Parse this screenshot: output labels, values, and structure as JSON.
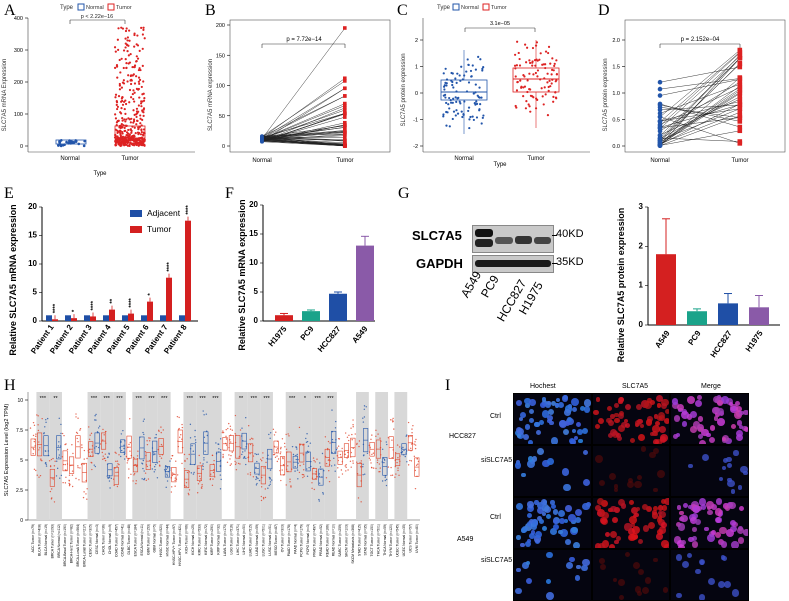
{
  "colors": {
    "normal": "#2255aa",
    "tumor": "#dd2222",
    "blue": "#1f4fa6",
    "red": "#d42020",
    "green": "#1aa38a",
    "purple": "#8a5aa8",
    "gray": "#cccccc"
  },
  "panelA": {
    "label": "A",
    "legend_title": "Type",
    "legend_normal": "Normal",
    "legend_tumor": "Tumor",
    "pvalue": "p < 2.22e−16",
    "ylabel": "SLC7A5 mRNA Expression",
    "xlabel": "Type",
    "chart_data": {
      "type": "box",
      "categories": [
        "Normal",
        "Tumor"
      ],
      "y_ticks": [
        "0",
        "100",
        "200",
        "300",
        "400"
      ],
      "ylim": [
        0,
        400
      ],
      "medians": [
        3,
        22
      ],
      "q1": [
        1,
        10
      ],
      "q3": [
        6,
        40
      ]
    }
  },
  "panelB": {
    "label": "B",
    "pvalue": "p = 7.72e−14",
    "ylabel": "SLC7A5 mRNA expression",
    "chart_data": {
      "type": "paired",
      "categories": [
        "Normal",
        "Tumor"
      ],
      "y_ticks": [
        "0",
        "50",
        "100",
        "150",
        "200"
      ],
      "ylim": [
        0,
        200
      ]
    }
  },
  "panelC": {
    "label": "C",
    "legend_title": "Type",
    "legend_normal": "Normal",
    "legend_tumor": "Tumor",
    "pvalue": "3.1e−05",
    "ylabel": "SLC7A5 protein expression",
    "xlabel": "Type",
    "chart_data": {
      "type": "box",
      "categories": [
        "Normal",
        "Tumor"
      ],
      "y_ticks": [
        "2",
        "1",
        "0",
        "-1",
        "-2"
      ],
      "ylim": [
        -2,
        2
      ]
    }
  },
  "panelD": {
    "label": "D",
    "pvalue": "p = 2.152e−04",
    "ylabel": "SLC7A5 protein expression",
    "chart_data": {
      "type": "paired",
      "categories": [
        "Normal",
        "Tumor"
      ],
      "y_ticks": [
        "2.0",
        "1.5",
        "1.0",
        "0.5",
        "0.0"
      ],
      "ylim": [
        0,
        2
      ]
    }
  },
  "panelE": {
    "label": "E",
    "ylabel": "Relative SLC7A5 mRNA expression",
    "legend_adjacent": "Adjacent",
    "legend_tumor": "Tumor",
    "chart_data": {
      "type": "bar",
      "categories": [
        "Patient 1",
        "Patient 2",
        "Patient 3",
        "Patient 4",
        "Patient 5",
        "Patient 6",
        "Patient 7",
        "Patient 8"
      ],
      "series": [
        {
          "name": "Adjacent",
          "values": [
            1,
            1,
            1,
            1,
            1,
            1,
            1,
            1
          ]
        },
        {
          "name": "Tumor",
          "values": [
            0.3,
            0.5,
            0.8,
            2.0,
            1.3,
            3.4,
            7.6,
            17.6
          ]
        }
      ],
      "sig": [
        "****",
        "*",
        "****",
        "**",
        "****",
        "*",
        "****",
        "****"
      ],
      "y_ticks": [
        "0",
        "5",
        "10",
        "15",
        "20"
      ],
      "ylim": [
        0,
        20
      ]
    }
  },
  "panelF": {
    "label": "F",
    "ylabel": "Relative SLC7A5 mRNA expression",
    "chart_data": {
      "type": "bar",
      "categories": [
        "H1975",
        "PC9",
        "HCC827",
        "A549"
      ],
      "values": [
        1.0,
        1.7,
        4.7,
        13.0
      ],
      "errors": [
        0.3,
        0.2,
        0.3,
        1.6
      ],
      "y_ticks": [
        "0",
        "5",
        "10",
        "15",
        "20"
      ],
      "ylim": [
        0,
        20
      ]
    }
  },
  "panelG": {
    "label": "G",
    "blot_labels": [
      "SLC7A5",
      "GAPDH"
    ],
    "kd_labels": [
      "40KD",
      "35KD"
    ],
    "lanes": [
      "A549",
      "PC9",
      "HCC827",
      "H1975"
    ],
    "ylabel": "Relative SLC7A5 protein expression",
    "chart_data": {
      "type": "bar",
      "categories": [
        "A549",
        "PC9",
        "HCC827",
        "H1975"
      ],
      "values": [
        1.8,
        0.35,
        0.55,
        0.45
      ],
      "errors": [
        0.9,
        0.06,
        0.25,
        0.3
      ],
      "y_ticks": [
        "0",
        "1",
        "2",
        "3"
      ],
      "ylim": [
        0,
        3
      ]
    }
  },
  "panelH": {
    "label": "H",
    "ylabel": "SLC7A5 Expression Level (log2 TPM)",
    "y_ticks": [
      "10",
      "7.5",
      "5",
      "2.5",
      "0"
    ],
    "sig_marks": [
      "***",
      "**",
      "***",
      "***",
      "***",
      "***",
      "***",
      "***",
      "***",
      "***",
      "***",
      "**",
      "***",
      "***",
      "***",
      "*",
      "***",
      "***"
    ],
    "cancers": [
      "ACC Tumor (n=79)",
      "BLCA Tumor (n=408)",
      "BLCA Normal (n=19)",
      "BRCA Tumor (n=1093)",
      "BRCA Normal (n=112)",
      "BRCA-Basal Tumor (n=190)",
      "BRCA-Her2 Tumor (n=82)",
      "BRCA-LumA Tumor (n=564)",
      "BRCA-LumB Tumor (n=217)",
      "CESC Tumor (n=305)",
      "CESC Normal (n=3)",
      "CHOL Tumor (n=36)",
      "CHOL Normal (n=9)",
      "COAD Tumor (n=457)",
      "COAD Normal (n=41)",
      "DLBC Tumor (n=48)",
      "ESCA Tumor (n=184)",
      "ESCA Normal (n=11)",
      "GBM Tumor (n=153)",
      "GBM Normal (n=5)",
      "HNSC Tumor (n=520)",
      "HNSC Normal (n=44)",
      "HNSC-HPV+ Tumor (n=97)",
      "HNSC-HPV- Tumor (n=421)",
      "KICH Tumor (n=66)",
      "KICH Normal (n=25)",
      "KIRC Tumor (n=533)",
      "KIRC Normal (n=72)",
      "KIRP Tumor (n=290)",
      "KIRP Normal (n=32)",
      "LAML Tumor (n=173)",
      "LGG Tumor (n=516)",
      "LIHC Tumor (n=371)",
      "LIHC Normal (n=50)",
      "LUAD Tumor (n=515)",
      "LUAD Normal (n=59)",
      "LUSC Tumor (n=501)",
      "LUSC Normal (n=51)",
      "MESO Tumor (n=87)",
      "OV Tumor (n=303)",
      "PAAD Tumor (n=178)",
      "PAAD Normal (n=4)",
      "PCPG Tumor (n=179)",
      "PCPG Normal (n=3)",
      "PRAD Tumor (n=497)",
      "PRAD Normal (n=52)",
      "READ Tumor (n=166)",
      "READ Normal (n=10)",
      "SARC Tumor (n=259)",
      "SKCM Tumor (n=103)",
      "SKCM Metastasis (n=368)",
      "STAD Tumor (n=415)",
      "STAD Normal (n=35)",
      "TGCT Tumor (n=150)",
      "THCA Tumor (n=501)",
      "THCA Normal (n=59)",
      "THYM Tumor (n=120)",
      "UCEC Tumor (n=545)",
      "UCEC Normal (n=35)",
      "UCS Tumor (n=57)",
      "UVM Tumor (n=80)"
    ]
  },
  "panelI": {
    "label": "I",
    "col_headers": [
      "Hochest",
      "SLC7A5",
      "Merge"
    ],
    "cell_lines": [
      "HCC827",
      "A549"
    ],
    "row_labels": [
      "Ctrl",
      "siSLC7A5",
      "Ctrl",
      "siSLC7A5"
    ]
  }
}
